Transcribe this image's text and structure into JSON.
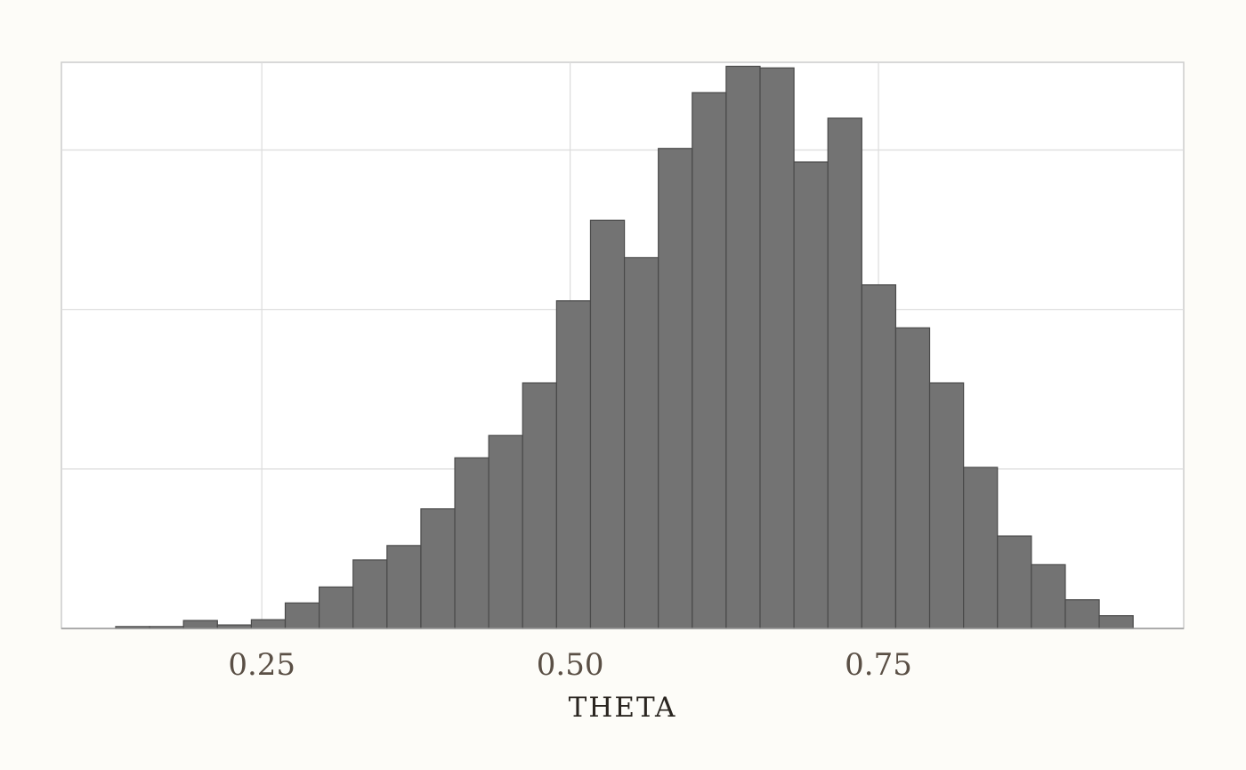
{
  "chart_data": {
    "type": "bar",
    "subtype": "histogram",
    "title": "",
    "xlabel": "THETA",
    "ylabel": "",
    "xlim": [
      0.0875,
      0.9975
    ],
    "ylim": [
      0,
      3550
    ],
    "bin_width": 0.0275,
    "bin_starts": [
      0.1315,
      0.159,
      0.1865,
      0.214,
      0.2415,
      0.269,
      0.2965,
      0.324,
      0.3515,
      0.379,
      0.4065,
      0.434,
      0.4615,
      0.489,
      0.5165,
      0.544,
      0.5715,
      0.599,
      0.6265,
      0.654,
      0.6815,
      0.709,
      0.7365,
      0.764,
      0.7915,
      0.819,
      0.8465,
      0.874,
      0.9015,
      0.929
    ],
    "values": [
      12,
      12,
      50,
      22,
      55,
      160,
      260,
      430,
      520,
      750,
      1070,
      1210,
      1540,
      2055,
      2560,
      2325,
      3010,
      3360,
      3525,
      3515,
      2925,
      3200,
      2155,
      1885,
      1540,
      1010,
      580,
      400,
      180,
      80
    ],
    "x_ticks": [
      0.25,
      0.5,
      0.75
    ],
    "x_tick_labels": [
      "0.25",
      "0.50",
      "0.75"
    ],
    "y_gridlines": [
      1000,
      2000,
      3000
    ],
    "grid": true,
    "legend": "none",
    "colors": {
      "bar_fill": "#737373",
      "bar_stroke": "#4a4a4a",
      "grid": "#dcdcdc",
      "panel_border": "#cccccc",
      "background": "#fdfcf8",
      "tick_text": "#5a4f45",
      "axis_title_text": "#2a2520"
    }
  }
}
